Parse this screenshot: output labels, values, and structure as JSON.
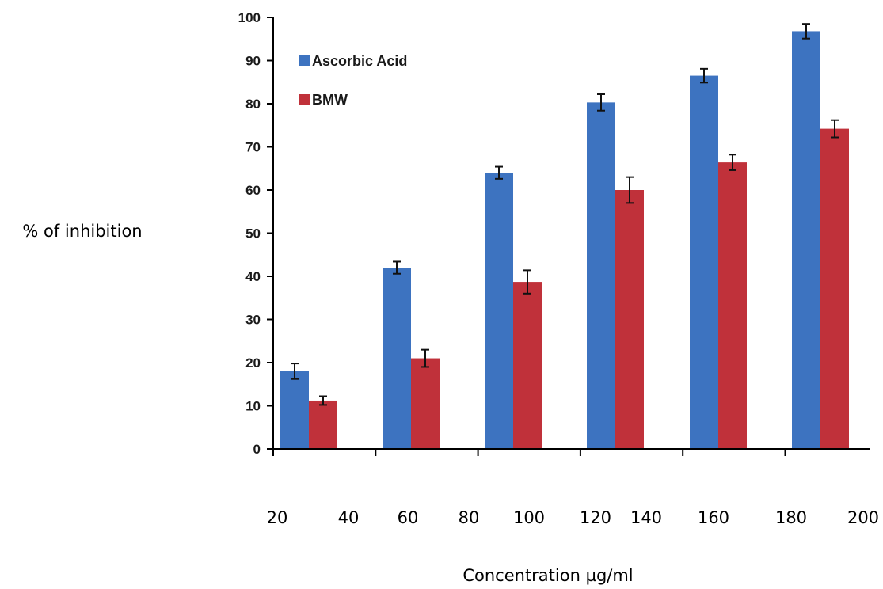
{
  "chart_data": {
    "type": "bar",
    "title": "",
    "xlabel": "Concentration µg/ml",
    "ylabel": "% of inhibition",
    "ylim": [
      0,
      100
    ],
    "yticks": [
      0,
      10,
      20,
      30,
      40,
      50,
      60,
      70,
      80,
      90,
      100
    ],
    "x_tick_labels": [
      "20",
      "40",
      "60",
      "80",
      "100",
      "120",
      "140",
      "160",
      "180",
      "200"
    ],
    "categories": [
      "20-40",
      "60-80",
      "100",
      "120-140",
      "160",
      "180-200"
    ],
    "series": [
      {
        "name": "Ascorbic Acid",
        "color": "#3d73c0",
        "values": [
          18,
          42,
          64,
          80.3,
          86.5,
          96.8
        ],
        "errors": [
          1.8,
          1.4,
          1.4,
          1.9,
          1.6,
          1.7
        ]
      },
      {
        "name": "BMW",
        "color": "#c0313a",
        "values": [
          11.2,
          21,
          38.7,
          60,
          66.4,
          74.2
        ],
        "errors": [
          1.0,
          2.0,
          2.7,
          3.0,
          1.8,
          2.0
        ]
      }
    ],
    "legend_position": "top-left",
    "grid": false
  }
}
